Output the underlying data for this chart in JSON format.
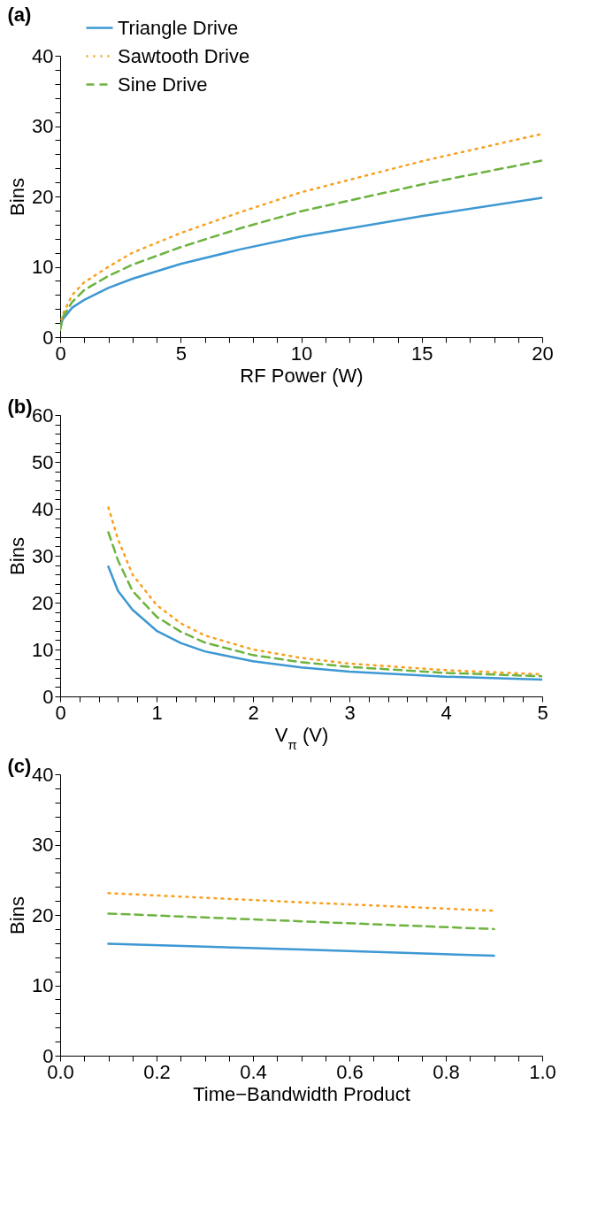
{
  "chart_data": [
    {
      "type": "line",
      "title": "(a)",
      "xlabel": "RF Power (W)",
      "ylabel": "Bins",
      "legend": "top left",
      "grid": false,
      "x": [
        0,
        0.1,
        0.5,
        1,
        2,
        3,
        5,
        7.5,
        10,
        15,
        20
      ],
      "xlim": [
        0,
        20
      ],
      "xticks": [
        0,
        {
          "value": 1,
          "label": null
        },
        {
          "value": 2,
          "label": null
        },
        {
          "value": 3,
          "label": null
        },
        {
          "value": 4,
          "label": null
        },
        5,
        {
          "value": 6,
          "label": null
        },
        {
          "value": 7,
          "label": null
        },
        {
          "value": 8,
          "label": null
        },
        {
          "value": 9,
          "label": null
        },
        10,
        {
          "value": 11,
          "label": null
        },
        {
          "value": 12,
          "label": null
        },
        {
          "value": 13,
          "label": null
        },
        {
          "value": 14,
          "label": null
        },
        15,
        {
          "value": 16,
          "label": null
        },
        {
          "value": 17,
          "label": null
        },
        {
          "value": 18,
          "label": null
        },
        {
          "value": 19,
          "label": null
        },
        20
      ],
      "ylim": [
        0,
        40
      ],
      "yticks": [
        0,
        {
          "value": 2,
          "label": null
        },
        {
          "value": 4,
          "label": null
        },
        {
          "value": 6,
          "label": null
        },
        {
          "value": 8,
          "label": null
        },
        10,
        {
          "value": 12,
          "label": null
        },
        {
          "value": 14,
          "label": null
        },
        {
          "value": 16,
          "label": null
        },
        {
          "value": 18,
          "label": null
        },
        20,
        {
          "value": 22,
          "label": null
        },
        {
          "value": 24,
          "label": null
        },
        {
          "value": 26,
          "label": null
        },
        {
          "value": 28,
          "label": null
        },
        30,
        {
          "value": 32,
          "label": null
        },
        {
          "value": 34,
          "label": null
        },
        {
          "value": 36,
          "label": null
        },
        {
          "value": 38,
          "label": null
        },
        40
      ],
      "series": [
        {
          "name": "Triangle Drive",
          "color": "#3d98d3",
          "line_style": "solid",
          "values": [
            1.2,
            2.5,
            4.2,
            5.3,
            7,
            8.3,
            10.4,
            12.5,
            14.3,
            17.2,
            19.8
          ]
        },
        {
          "name": "Sawtooth Drive",
          "color": "#f8a01f",
          "line_style": "dotted",
          "values": [
            1.5,
            3.2,
            6,
            7.8,
            10,
            12,
            14.8,
            17.8,
            20.6,
            25,
            28.9
          ]
        },
        {
          "name": "Sine Drive",
          "color": "#6db33f",
          "line_style": "dashed",
          "values": [
            1,
            2.8,
            5,
            6.7,
            8.7,
            10.3,
            12.8,
            15.5,
            17.9,
            21.7,
            25.1
          ]
        }
      ]
    },
    {
      "type": "line",
      "title": "(b)",
      "xlabel": "V$_{π}$ (V)",
      "ylabel": "Bins",
      "grid": false,
      "x": [
        0.5,
        0.6,
        0.75,
        1,
        1.25,
        1.5,
        2,
        2.5,
        3,
        4,
        5
      ],
      "xlim": [
        0,
        5
      ],
      "xticks": [
        0,
        {
          "value": 0.2,
          "label": null
        },
        {
          "value": 0.4,
          "label": null
        },
        {
          "value": 0.6,
          "label": null
        },
        {
          "value": 0.8,
          "label": null
        },
        1,
        {
          "value": 1.2,
          "label": null
        },
        {
          "value": 1.4,
          "label": null
        },
        {
          "value": 1.6,
          "label": null
        },
        {
          "value": 1.8,
          "label": null
        },
        2,
        {
          "value": 2.2,
          "label": null
        },
        {
          "value": 2.4,
          "label": null
        },
        {
          "value": 2.6,
          "label": null
        },
        {
          "value": 2.8,
          "label": null
        },
        3,
        {
          "value": 3.2,
          "label": null
        },
        {
          "value": 3.4,
          "label": null
        },
        {
          "value": 3.6,
          "label": null
        },
        {
          "value": 3.8,
          "label": null
        },
        4,
        {
          "value": 4.2,
          "label": null
        },
        {
          "value": 4.4,
          "label": null
        },
        {
          "value": 4.6,
          "label": null
        },
        {
          "value": 4.8,
          "label": null
        },
        5
      ],
      "ylim": [
        0,
        60
      ],
      "yticks": [
        0,
        {
          "value": 2,
          "label": null
        },
        {
          "value": 4,
          "label": null
        },
        {
          "value": 6,
          "label": null
        },
        {
          "value": 8,
          "label": null
        },
        10,
        {
          "value": 12,
          "label": null
        },
        {
          "value": 14,
          "label": null
        },
        {
          "value": 16,
          "label": null
        },
        {
          "value": 18,
          "label": null
        },
        20,
        {
          "value": 22,
          "label": null
        },
        {
          "value": 24,
          "label": null
        },
        {
          "value": 26,
          "label": null
        },
        {
          "value": 28,
          "label": null
        },
        30,
        {
          "value": 32,
          "label": null
        },
        {
          "value": 34,
          "label": null
        },
        {
          "value": 36,
          "label": null
        },
        {
          "value": 38,
          "label": null
        },
        40,
        {
          "value": 42,
          "label": null
        },
        {
          "value": 44,
          "label": null
        },
        {
          "value": 46,
          "label": null
        },
        {
          "value": 48,
          "label": null
        },
        50,
        {
          "value": 52,
          "label": null
        },
        {
          "value": 54,
          "label": null
        },
        {
          "value": 56,
          "label": null
        },
        {
          "value": 58,
          "label": null
        },
        60
      ],
      "series": [
        {
          "color": "#3d98d3",
          "line_style": "solid",
          "values": [
            27.7,
            22.5,
            18.5,
            14,
            11.4,
            9.6,
            7.5,
            6.2,
            5.3,
            4.2,
            3.6
          ]
        },
        {
          "color": "#f8a01f",
          "line_style": "dotted",
          "values": [
            40.3,
            33.5,
            26,
            19.5,
            15.6,
            13,
            10,
            8.2,
            7,
            5.6,
            4.7
          ]
        },
        {
          "color": "#6db33f",
          "line_style": "dashed",
          "values": [
            35,
            29,
            22.5,
            17,
            13.8,
            11.5,
            8.8,
            7.3,
            6.3,
            5,
            4.3
          ]
        }
      ]
    },
    {
      "type": "line",
      "title": "(c)",
      "xlabel": "Time−Bandwidth Product",
      "ylabel": "Bins",
      "grid": false,
      "x": [
        0.1,
        0.5,
        0.9
      ],
      "xlim": [
        0,
        1
      ],
      "xticks": [
        {
          "value": 0,
          "label": "0.0"
        },
        {
          "value": 0.05,
          "label": null
        },
        {
          "value": 0.1,
          "label": null
        },
        {
          "value": 0.15,
          "label": null
        },
        0.2,
        {
          "value": 0.25,
          "label": null
        },
        {
          "value": 0.3,
          "label": null
        },
        {
          "value": 0.35,
          "label": null
        },
        0.4,
        {
          "value": 0.45,
          "label": null
        },
        {
          "value": 0.5,
          "label": null
        },
        {
          "value": 0.55,
          "label": null
        },
        0.6,
        {
          "value": 0.65,
          "label": null
        },
        {
          "value": 0.7,
          "label": null
        },
        {
          "value": 0.75,
          "label": null
        },
        0.8,
        {
          "value": 0.85,
          "label": null
        },
        {
          "value": 0.9,
          "label": null
        },
        {
          "value": 0.95,
          "label": null
        },
        {
          "value": 1,
          "label": "1.0"
        }
      ],
      "ylim": [
        0,
        40
      ],
      "yticks": [
        0,
        {
          "value": 2,
          "label": null
        },
        {
          "value": 4,
          "label": null
        },
        {
          "value": 6,
          "label": null
        },
        {
          "value": 8,
          "label": null
        },
        10,
        {
          "value": 12,
          "label": null
        },
        {
          "value": 14,
          "label": null
        },
        {
          "value": 16,
          "label": null
        },
        {
          "value": 18,
          "label": null
        },
        20,
        {
          "value": 22,
          "label": null
        },
        {
          "value": 24,
          "label": null
        },
        {
          "value": 26,
          "label": null
        },
        {
          "value": 28,
          "label": null
        },
        30,
        {
          "value": 32,
          "label": null
        },
        {
          "value": 34,
          "label": null
        },
        {
          "value": 36,
          "label": null
        },
        {
          "value": 38,
          "label": null
        },
        40
      ],
      "series": [
        {
          "color": "#3d98d3",
          "line_style": "solid",
          "values": [
            15.9,
            15.1,
            14.2
          ]
        },
        {
          "color": "#f8a01f",
          "line_style": "dotted",
          "values": [
            23.1,
            21.8,
            20.6
          ]
        },
        {
          "color": "#6db33f",
          "line_style": "dashed",
          "values": [
            20.2,
            19.1,
            18
          ]
        }
      ]
    }
  ]
}
